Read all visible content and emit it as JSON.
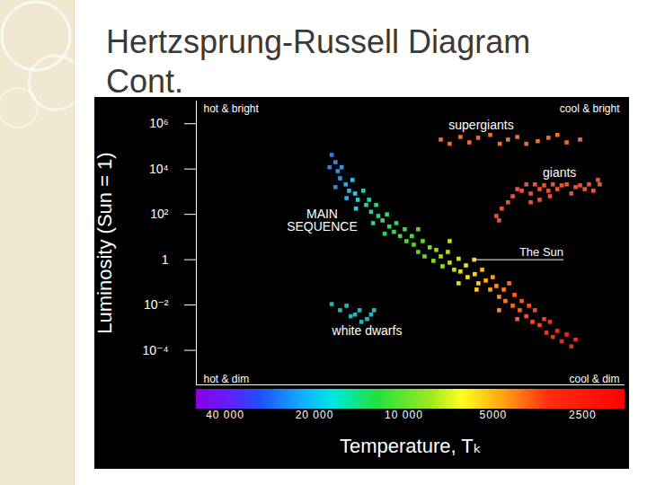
{
  "chart_data": {
    "type": "scatter",
    "title": "Hertzsprung-Russell Diagram Cont.",
    "x_label": "Temperature, Tₖ",
    "y_label": "Luminosity (Sun = 1)",
    "log": true,
    "marker": "square",
    "xlim": [
      50000,
      1800
    ],
    "xticks": [
      {
        "value": 40000,
        "label": "40 000"
      },
      {
        "value": 20000,
        "label": "20 000"
      },
      {
        "value": 10000,
        "label": "10 000"
      },
      5000,
      2500
    ],
    "ylim": [
      3e-06,
      10000000
    ],
    "yticks": [
      {
        "value": 1000000,
        "label": "10⁶"
      },
      {
        "value": 10000,
        "label": "10⁴"
      },
      {
        "value": 100,
        "label": "10²"
      },
      1,
      {
        "value": 0.01,
        "label": "10⁻²"
      },
      {
        "value": 0.0001,
        "label": "10⁻⁴"
      }
    ],
    "series": [
      {
        "name": "MAIN\nSEQUENCE",
        "color": "temperature",
        "label": {
          "x": 18850,
          "y": 54
        },
        "x": [
          17500,
          17000,
          17800,
          16700,
          16200,
          16400,
          15700,
          17000,
          15300,
          14900,
          14600,
          15600,
          14300,
          13700,
          13400,
          13100,
          14500,
          12900,
          12400,
          12200,
          11800,
          12700,
          11400,
          11200,
          10800,
          11600,
          10600,
          10300,
          9930,
          9800,
          9400,
          9260,
          8950,
          8640,
          8520,
          8180,
          7950,
          7780,
          7510,
          7410,
          7110,
          7010,
          6770,
          6540,
          6450,
          6180,
          6100,
          5800,
          5770,
          5610,
          5450,
          5300,
          5120,
          5020,
          4880,
          4780,
          4610,
          4550,
          4420,
          4300,
          4240,
          4070,
          4010,
          3870,
          3790,
          3690,
          3620,
          3490,
          3370,
          3310,
          3220,
          3150,
          3040,
          2940,
          2830,
          2730,
          2640,
          4150,
          4780,
          5690,
          6540,
          8950,
          7010
        ],
        "values": [
          42000,
          20000,
          12000,
          8100,
          12000,
          3900,
          2100,
          1600,
          1100,
          3300,
          830,
          520,
          440,
          1100,
          260,
          440,
          180,
          130,
          260,
          85,
          54,
          41,
          100,
          29,
          17,
          14,
          41,
          11,
          22,
          6.6,
          11,
          4.6,
          2.2,
          6.6,
          1.4,
          3.5,
          0.89,
          2.7,
          1.4,
          0.51,
          2.2,
          0.74,
          0.36,
          1.1,
          0.3,
          0.56,
          0.17,
          1,
          0.23,
          0.091,
          0.36,
          0.12,
          0.048,
          0.17,
          0.069,
          0.023,
          0.048,
          0.015,
          0.091,
          0.0093,
          0.028,
          0.0059,
          0.015,
          0.0032,
          0.0093,
          0.0018,
          0.0059,
          0.0013,
          0.0024,
          0.0006,
          0.0018,
          0.00039,
          0.00072,
          0.00025,
          0.0005,
          0.00015,
          0.0003,
          0.0024,
          0.0059,
          0.048,
          0.091,
          22,
          6.6
        ]
      },
      {
        "name": "giants",
        "color": "#e4553a",
        "label": {
          "x": 2990,
          "y": 6800
        },
        "x": [
          4780,
          4880,
          4680,
          4460,
          4300,
          4150,
          4010,
          3870,
          3740,
          3620,
          3490,
          3370,
          3260,
          3150,
          3040,
          2940,
          2830,
          2730,
          2640,
          2550,
          2460,
          2380,
          2300,
          2220,
          2190,
          3490,
          3740,
          3220
        ],
        "values": [
          54,
          85,
          180,
          340,
          630,
          1300,
          1100,
          2100,
          830,
          2100,
          1300,
          1900,
          1100,
          2100,
          1300,
          1900,
          2100,
          830,
          1600,
          1900,
          1300,
          2100,
          1100,
          3300,
          2100,
          440,
          340,
          630
        ]
      },
      {
        "name": "supergiants",
        "color": "#e8703a",
        "label": {
          "x": 5490,
          "y": 850000
        },
        "x": [
          7510,
          7010,
          6450,
          6020,
          5620,
          5120,
          4750,
          4460,
          4150,
          3870,
          3540,
          3260,
          3040,
          2830,
          2550
        ],
        "values": [
          200000,
          130000,
          260000,
          150000,
          240000,
          320000,
          130000,
          200000,
          260000,
          130000,
          170000,
          240000,
          320000,
          150000,
          200000
        ]
      },
      {
        "name": "white dwarfs",
        "color": "#2fb0b8",
        "label": {
          "x": 13300,
          "y": 0.00072
        },
        "x": [
          17500,
          16400,
          15600,
          14600,
          14100,
          13300,
          12900,
          13900,
          12600,
          15100
        ],
        "values": [
          0.011,
          0.0059,
          0.0093,
          0.0038,
          0.0059,
          0.0024,
          0.0038,
          0.0018,
          0.0059,
          0.0032
        ]
      }
    ],
    "annotations": [
      {
        "text": "hot & bright",
        "anchor": "top-left"
      },
      {
        "text": "cool & bright",
        "anchor": "top-right"
      },
      {
        "text": "hot & dim",
        "anchor": "bottom-left"
      },
      {
        "text": "cool & dim",
        "anchor": "bottom-right"
      },
      {
        "text": "The Sun",
        "x": 2900,
        "y": 1,
        "target_x": 5800,
        "target_y": 1
      }
    ]
  }
}
